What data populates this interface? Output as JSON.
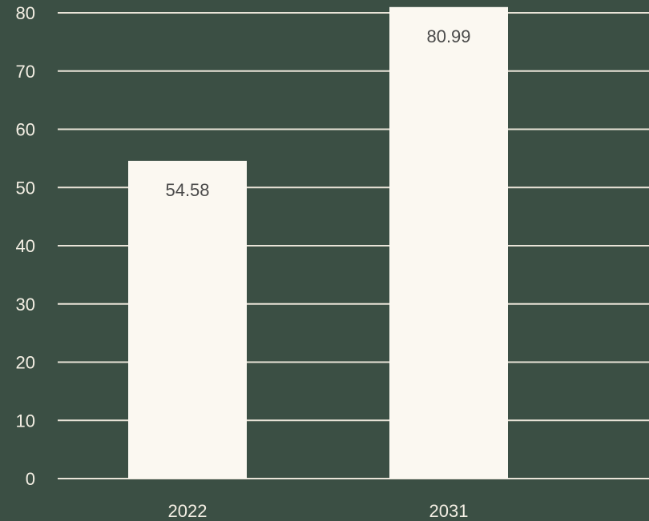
{
  "chart_data": {
    "type": "bar",
    "categories": [
      "2022",
      "2031"
    ],
    "values": [
      54.58,
      80.99
    ],
    "data_labels": [
      "54.58",
      "80.99"
    ],
    "yticks": [
      0,
      10,
      20,
      30,
      40,
      50,
      60,
      70,
      80
    ],
    "ylim": [
      0,
      80
    ],
    "grid": true,
    "legend": "none"
  },
  "colors": {
    "background": "#3b4f44",
    "bar": "#fbf8f1",
    "grid": "#e9e4d8",
    "tick_text": "#f4efe4",
    "data_label_text": "#4a4a4a"
  }
}
